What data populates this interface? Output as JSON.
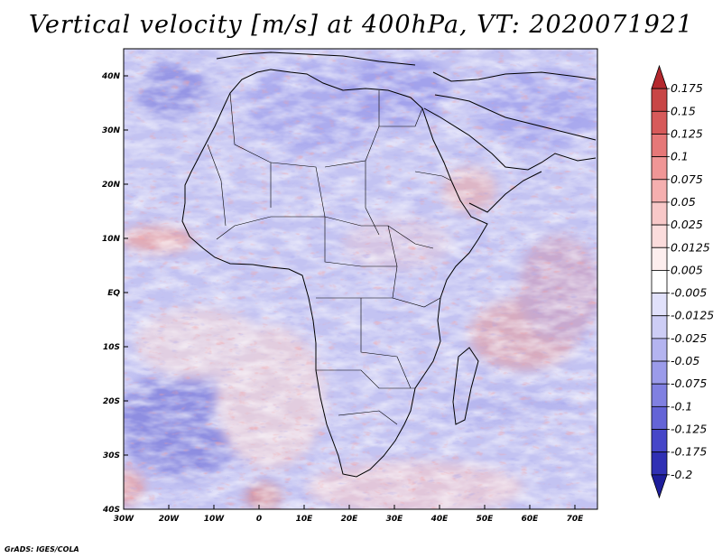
{
  "title": "Vertical velocity [m/s] at 400hPa, VT: 2020071921",
  "credit": "GrADS: IGES/COLA",
  "map": {
    "lon_range": [
      -30,
      75
    ],
    "lat_range": [
      -40,
      45
    ],
    "lon_ticks": [
      {
        "value": -30,
        "label": "30W"
      },
      {
        "value": -20,
        "label": "20W"
      },
      {
        "value": -10,
        "label": "10W"
      },
      {
        "value": 0,
        "label": "0"
      },
      {
        "value": 10,
        "label": "10E"
      },
      {
        "value": 20,
        "label": "20E"
      },
      {
        "value": 30,
        "label": "30E"
      },
      {
        "value": 40,
        "label": "40E"
      },
      {
        "value": 50,
        "label": "50E"
      },
      {
        "value": 60,
        "label": "60E"
      },
      {
        "value": 70,
        "label": "70E"
      }
    ],
    "lat_ticks": [
      {
        "value": 40,
        "label": "40N"
      },
      {
        "value": 30,
        "label": "30N"
      },
      {
        "value": 20,
        "label": "20N"
      },
      {
        "value": 10,
        "label": "10N"
      },
      {
        "value": 0,
        "label": "EQ"
      },
      {
        "value": -10,
        "label": "10S"
      },
      {
        "value": -20,
        "label": "20S"
      },
      {
        "value": -30,
        "label": "30S"
      },
      {
        "value": -40,
        "label": "40S"
      }
    ]
  },
  "colorbar": {
    "levels": [
      "0.175",
      "0.15",
      "0.125",
      "0.1",
      "0.075",
      "0.05",
      "0.025",
      "0.0125",
      "0.005",
      "-0.005",
      "-0.0125",
      "-0.025",
      "-0.05",
      "-0.075",
      "-0.1",
      "-0.125",
      "-0.175",
      "-0.2"
    ],
    "colors": [
      "#b4282d",
      "#c84646",
      "#d75a5a",
      "#e67878",
      "#f09696",
      "#f5afaf",
      "#f8c8c8",
      "#fbdcdc",
      "#fdeeee",
      "#ffffff",
      "#e1e1fb",
      "#cdcdf5",
      "#b4b4f0",
      "#9b9bea",
      "#8080e1",
      "#6464d7",
      "#4646c8",
      "#3030b4",
      "#1e1e9b"
    ]
  }
}
